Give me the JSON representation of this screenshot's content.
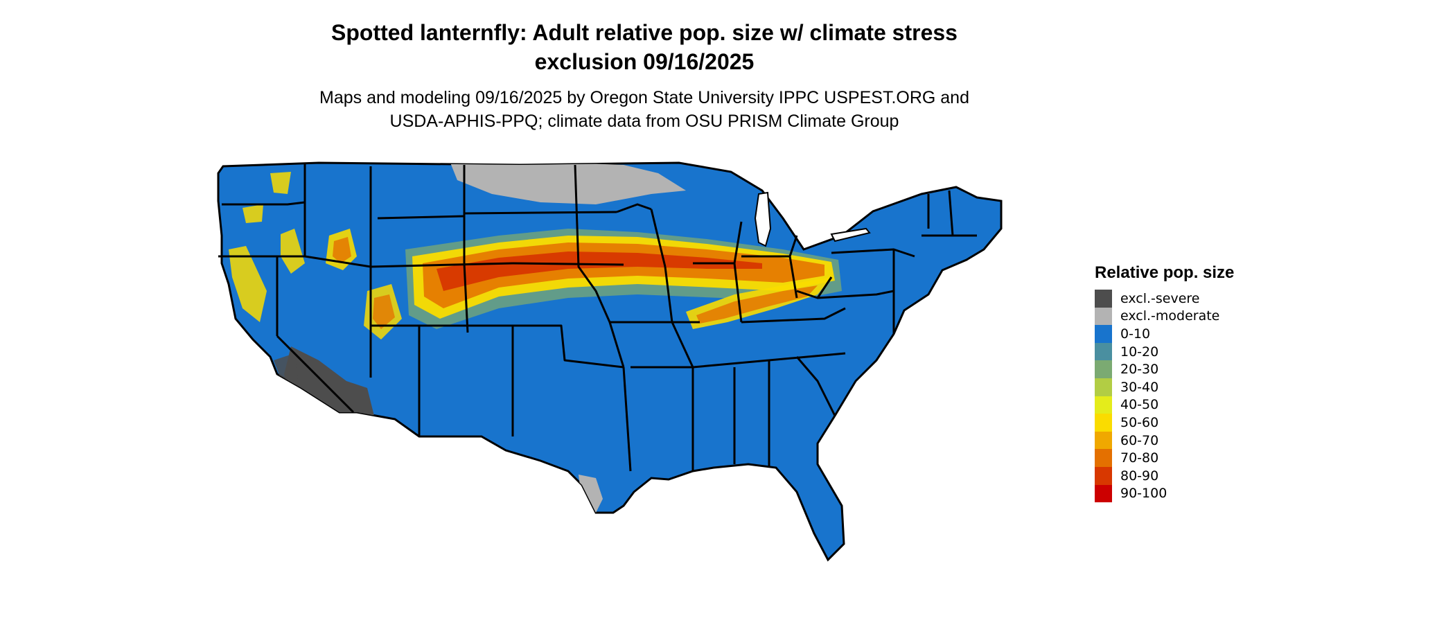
{
  "title": {
    "line1": "Spotted lanternfly: Adult relative pop. size w/ climate stress",
    "line2": "exclusion 09/16/2025"
  },
  "subtitle": {
    "line1": "Maps and modeling 09/16/2025 by Oregon State University IPPC USPEST.ORG and",
    "line2": "USDA-APHIS-PPQ; climate data from OSU PRISM Climate Group"
  },
  "map": {
    "land_color": "#1874CD",
    "border_color": "#000000",
    "exclusion_severe_color": "#4D4D4D",
    "exclusion_moderate_color": "#B3B3B3"
  },
  "legend": {
    "title": "Relative pop. size",
    "items": [
      {
        "label": "excl.-severe",
        "color": "#4D4D4D"
      },
      {
        "label": "excl.-moderate",
        "color": "#B3B3B3"
      },
      {
        "label": "0-10",
        "color": "#1874CD"
      },
      {
        "label": "10-20",
        "color": "#4A8FA0"
      },
      {
        "label": "20-30",
        "color": "#7BAA72"
      },
      {
        "label": "30-40",
        "color": "#B2CD44"
      },
      {
        "label": "40-50",
        "color": "#E4EC1B"
      },
      {
        "label": "50-60",
        "color": "#FADC00"
      },
      {
        "label": "60-70",
        "color": "#F0A800"
      },
      {
        "label": "70-80",
        "color": "#E47000"
      },
      {
        "label": "80-90",
        "color": "#D83800"
      },
      {
        "label": "90-100",
        "color": "#CC0000"
      }
    ]
  }
}
